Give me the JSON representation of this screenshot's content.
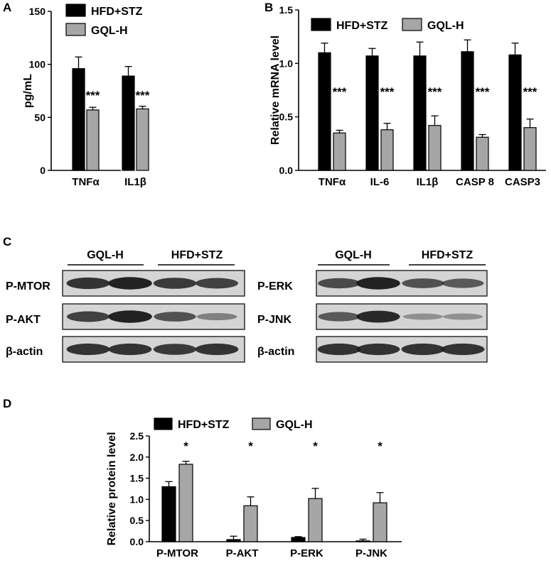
{
  "colors": {
    "hfd": "#000000",
    "gql": "#a6a6a6",
    "blot_bg": "#d4d4d4",
    "band": "#1a1a1a"
  },
  "panel_labels": {
    "a": "A",
    "b": "B",
    "c": "C",
    "d": "D"
  },
  "significance": {
    "three_star": "***",
    "one_star": "*"
  },
  "chart_data": [
    {
      "id": "A",
      "type": "bar",
      "categories": [
        "TNFα",
        "IL1β"
      ],
      "ylabel": "pg/mL",
      "ylim": [
        0,
        150
      ],
      "yticks": [
        0,
        50,
        100,
        150
      ],
      "legend_position": "top-right",
      "series": [
        {
          "name": "HFD+STZ",
          "values": [
            96,
            89
          ],
          "errors": [
            11,
            9
          ]
        },
        {
          "name": "GQL-H",
          "values": [
            57,
            58
          ],
          "errors": [
            2.5,
            2.5
          ]
        }
      ],
      "annotations": [
        "***",
        "***"
      ]
    },
    {
      "id": "B",
      "type": "bar",
      "categories": [
        "TNFα",
        "IL-6",
        "IL1β",
        "CASP 8",
        "CASP3"
      ],
      "ylabel": "Relative mRNA level",
      "ylim": [
        0,
        1.5
      ],
      "yticks": [
        "0.0",
        "0.5",
        "1.0",
        "1.5"
      ],
      "legend_position": "top",
      "series": [
        {
          "name": "HFD+STZ",
          "values": [
            1.1,
            1.07,
            1.07,
            1.11,
            1.08
          ],
          "errors": [
            0.09,
            0.07,
            0.13,
            0.11,
            0.11
          ]
        },
        {
          "name": "GQL-H",
          "values": [
            0.35,
            0.38,
            0.42,
            0.31,
            0.4
          ],
          "errors": [
            0.025,
            0.06,
            0.09,
            0.025,
            0.08
          ]
        }
      ],
      "annotations": [
        "***",
        "***",
        "***",
        "***",
        "***"
      ]
    },
    {
      "id": "D",
      "type": "bar",
      "categories": [
        "P-MTOR",
        "P-AKT",
        "P-ERK",
        "P-JNK"
      ],
      "ylabel": "Relative protein level",
      "ylim": [
        0,
        2.5
      ],
      "yticks": [
        "0.0",
        "0.5",
        "1.0",
        "1.5",
        "2.0",
        "2.5"
      ],
      "legend_position": "top",
      "series": [
        {
          "name": "HFD+STZ",
          "values": [
            1.3,
            0.05,
            0.1,
            0.02
          ],
          "errors": [
            0.12,
            0.08,
            0.02,
            0.04
          ]
        },
        {
          "name": "GQL-H",
          "values": [
            1.83,
            0.85,
            1.02,
            0.92
          ],
          "errors": [
            0.07,
            0.21,
            0.24,
            0.24
          ]
        }
      ],
      "annotations": [
        "*",
        "*",
        "*",
        "*"
      ]
    }
  ],
  "blots": {
    "left": {
      "groups": [
        "GQL-H",
        "HFD+STZ"
      ],
      "rows": [
        {
          "label": "P-MTOR",
          "intensity": [
            0.85,
            0.95,
            0.8,
            0.75
          ]
        },
        {
          "label": "P-AKT",
          "intensity": [
            0.75,
            0.95,
            0.65,
            0.35
          ]
        },
        {
          "label": "β-actin",
          "intensity": [
            0.85,
            0.85,
            0.8,
            0.85
          ]
        }
      ]
    },
    "right": {
      "groups": [
        "GQL-H",
        "HFD+STZ"
      ],
      "rows": [
        {
          "label": "P-ERK",
          "intensity": [
            0.7,
            0.95,
            0.65,
            0.6
          ]
        },
        {
          "label": "P-JNK",
          "intensity": [
            0.6,
            0.9,
            0.25,
            0.25
          ]
        },
        {
          "label": "β-actin",
          "intensity": [
            0.85,
            0.85,
            0.85,
            0.85
          ]
        }
      ]
    }
  }
}
